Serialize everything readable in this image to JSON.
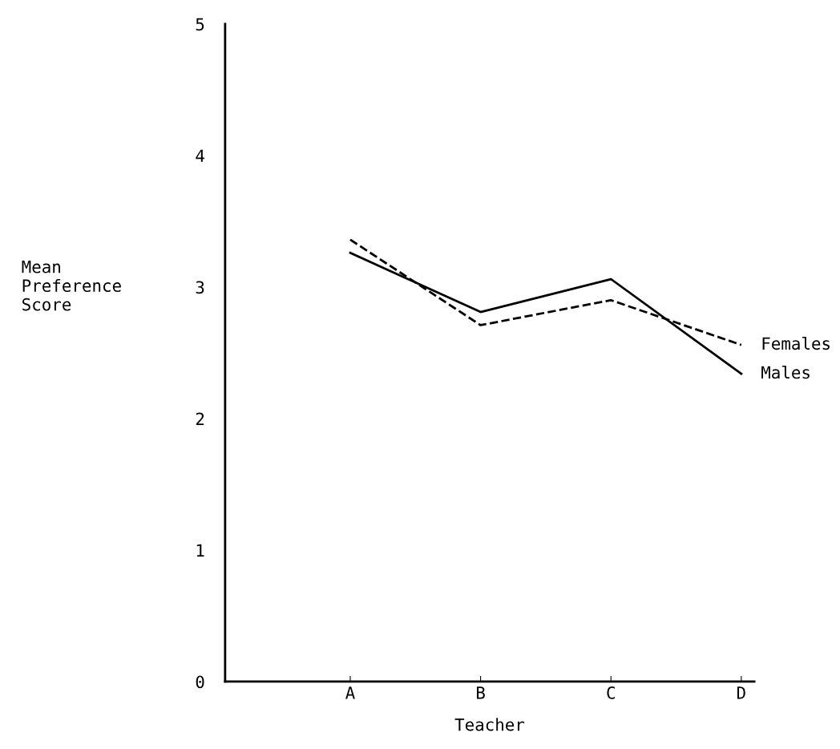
{
  "chart_data": {
    "type": "line",
    "xlabel": "Teacher",
    "ylabel": "Mean\nPreference\nScore",
    "categories": [
      "A",
      "B",
      "C",
      "D"
    ],
    "series": [
      {
        "name": "Females",
        "color": "#000000",
        "line_style": "dashed",
        "values": [
          3.36,
          2.71,
          2.9,
          2.56
        ]
      },
      {
        "name": "Males",
        "color": "#000000",
        "line_style": "solid",
        "values": [
          3.26,
          2.81,
          3.06,
          2.34
        ]
      }
    ],
    "ylim": [
      0,
      5
    ],
    "yticks": [
      0,
      1,
      2,
      3,
      4,
      5
    ],
    "grid": false,
    "legend": false
  }
}
